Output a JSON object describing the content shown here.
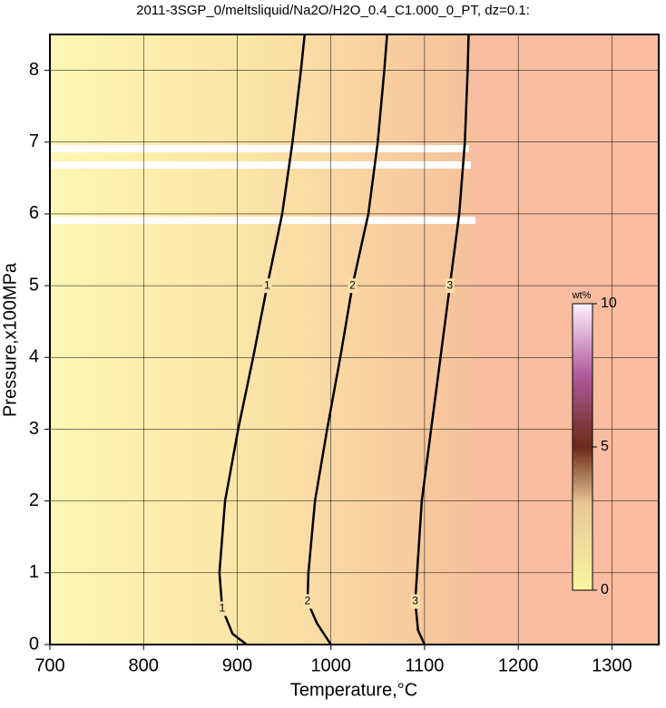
{
  "chart_data": {
    "type": "contour",
    "title": "2011-3SGP_0/meltsliquid/Na2O/H2O_0.4_C1.000_0_PT, dz=0.1:",
    "x_label": "Temperature,°C",
    "y_label": "Pressure,x100MPa",
    "xlim": [
      700,
      1350
    ],
    "ylim": [
      0,
      8.5
    ],
    "xticks": [
      700,
      800,
      900,
      1000,
      1100,
      1200,
      1300
    ],
    "yticks": [
      0,
      1,
      2,
      3,
      4,
      5,
      6,
      7,
      8
    ],
    "grid": true,
    "series": [
      {
        "name": "1",
        "color": "#000000",
        "x": [
          910,
          895,
          884,
          881,
          887,
          901,
          917,
          932,
          948,
          959,
          968,
          972
        ],
        "values": [
          0,
          0.15,
          0.5,
          1,
          2,
          3,
          4,
          5,
          6,
          7,
          8,
          8.5
        ]
      },
      {
        "name": "2",
        "color": "#000000",
        "x": [
          1000,
          985,
          975,
          976,
          983,
          996,
          1010,
          1023,
          1040,
          1050,
          1057,
          1060
        ],
        "values": [
          0,
          0.3,
          0.6,
          1,
          2,
          3,
          4,
          5,
          6,
          7,
          8,
          8.5
        ]
      },
      {
        "name": "3",
        "color": "#000000",
        "x": [
          1100,
          1093,
          1090,
          1092,
          1097,
          1107,
          1117,
          1127,
          1137,
          1143,
          1146,
          1147
        ],
        "values": [
          0,
          0.2,
          0.6,
          1,
          2,
          3,
          4,
          5,
          6,
          7,
          8,
          8.5
        ]
      }
    ],
    "colorbar": {
      "label": "wt%",
      "clim": [
        0,
        10
      ],
      "cticks": [
        0,
        5,
        10
      ]
    }
  }
}
